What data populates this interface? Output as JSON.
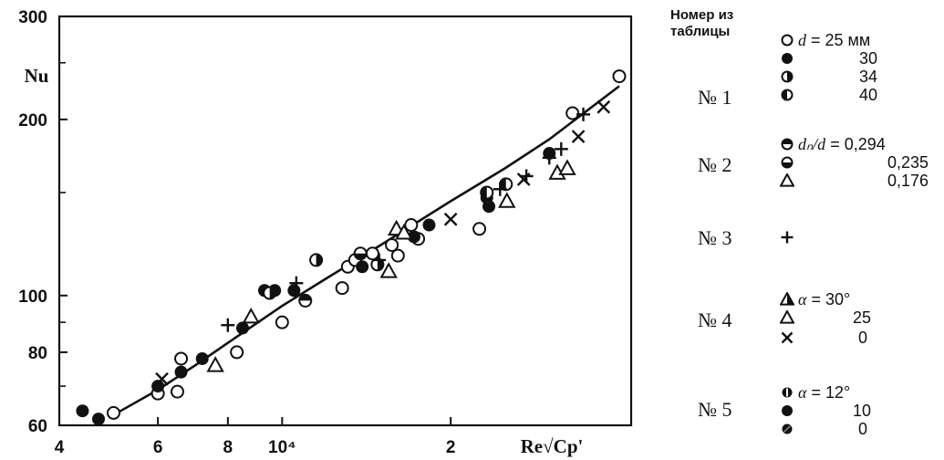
{
  "chart_data": {
    "type": "scatter",
    "title": "",
    "xlabel": "Re√Cp'",
    "ylabel": "Nu",
    "x_scale": "log",
    "y_scale": "log",
    "xlim": [
      4000,
      42000
    ],
    "ylim": [
      60,
      300
    ],
    "x_ticks": [
      {
        "value": 4000,
        "label": "4"
      },
      {
        "value": 6000,
        "label": "6"
      },
      {
        "value": 8000,
        "label": "8"
      },
      {
        "value": 10000,
        "label": "10⁴"
      },
      {
        "value": 20000,
        "label": "2"
      }
    ],
    "y_ticks": [
      {
        "value": 60,
        "label": "60"
      },
      {
        "value": 80,
        "label": "80"
      },
      {
        "value": 100,
        "label": "100"
      },
      {
        "value": 200,
        "label": "200"
      },
      {
        "value": 300,
        "label": "300"
      }
    ],
    "y_minor_ticks": [
      70,
      90,
      150,
      250
    ],
    "fit_curve": [
      [
        5000,
        62.5
      ],
      [
        6000,
        69
      ],
      [
        7000,
        76
      ],
      [
        8000,
        83
      ],
      [
        10000,
        96
      ],
      [
        12000,
        107
      ],
      [
        15000,
        122
      ],
      [
        20000,
        145
      ],
      [
        25000,
        165
      ],
      [
        30000,
        185
      ],
      [
        40000,
        228
      ]
    ],
    "series": [
      {
        "marker": "open-circle",
        "points": [
          [
            5000,
            63
          ],
          [
            6000,
            68
          ],
          [
            6500,
            68.5
          ],
          [
            6600,
            78
          ],
          [
            8300,
            80
          ],
          [
            10000,
            90
          ],
          [
            12800,
            103
          ],
          [
            13100,
            112
          ],
          [
            13500,
            115
          ],
          [
            14500,
            118
          ],
          [
            15700,
            122
          ],
          [
            16100,
            117
          ],
          [
            17000,
            132
          ],
          [
            17500,
            125
          ],
          [
            22500,
            130
          ],
          [
            33000,
            205
          ],
          [
            40000,
            237
          ]
        ]
      },
      {
        "marker": "filled-circle",
        "points": [
          [
            4400,
            63.5
          ],
          [
            4700,
            61.5
          ],
          [
            6000,
            70
          ],
          [
            6600,
            74
          ],
          [
            7200,
            78
          ],
          [
            8500,
            88
          ],
          [
            9300,
            102
          ],
          [
            9700,
            102
          ],
          [
            10500,
            102
          ],
          [
            13900,
            112
          ],
          [
            17200,
            126
          ],
          [
            18300,
            132
          ],
          [
            23200,
            147
          ],
          [
            23400,
            142
          ],
          [
            30000,
            175
          ]
        ]
      },
      {
        "marker": "right-half-circle",
        "points": [
          [
            9500,
            101
          ],
          [
            11500,
            115
          ],
          [
            14800,
            113
          ]
        ]
      },
      {
        "marker": "left-half-circle",
        "points": [
          [
            23200,
            150
          ],
          [
            25100,
            155
          ]
        ]
      },
      {
        "marker": "top-half-circle",
        "points": [
          [
            11000,
            98
          ]
        ]
      },
      {
        "marker": "bottom-half-circle",
        "points": [
          [
            13800,
            118
          ]
        ]
      },
      {
        "marker": "triangle",
        "points": [
          [
            7600,
            76
          ],
          [
            8800,
            92
          ],
          [
            15500,
            110
          ],
          [
            16000,
            130
          ],
          [
            16500,
            128
          ],
          [
            25200,
            145
          ],
          [
            31000,
            162
          ],
          [
            32300,
            165
          ]
        ]
      },
      {
        "marker": "plus",
        "points": [
          [
            8000,
            89
          ],
          [
            10600,
            105
          ],
          [
            14900,
            115
          ],
          [
            24500,
            152
          ],
          [
            27300,
            160
          ],
          [
            30000,
            172
          ],
          [
            31500,
            178
          ],
          [
            34500,
            204
          ]
        ]
      },
      {
        "marker": "cross",
        "points": [
          [
            6100,
            72
          ],
          [
            20000,
            135
          ],
          [
            27000,
            158
          ],
          [
            33800,
            187
          ],
          [
            37500,
            210
          ]
        ]
      }
    ]
  },
  "legend": {
    "header": "Номер из таблицы",
    "groups": [
      {
        "label": "№ 1",
        "rows": [
          {
            "symbol": "open-circle",
            "var": "d",
            "eq": " = ",
            "value": "25 мм"
          },
          {
            "symbol": "filled-circle",
            "value": "30"
          },
          {
            "symbol": "right-half-circle",
            "value": "34"
          },
          {
            "symbol": "left-half-circle",
            "value": "40"
          }
        ]
      },
      {
        "label": "№ 2",
        "rows": [
          {
            "symbol": "top-half-circle",
            "var": "dₙ/d",
            "eq": " = ",
            "value": "0,294"
          },
          {
            "symbol": "bottom-half-circle",
            "value": "0,235"
          },
          {
            "symbol": "triangle",
            "value": "0,176"
          }
        ]
      },
      {
        "label": "№ 3",
        "rows": [
          {
            "symbol": "plus",
            "value": ""
          }
        ]
      },
      {
        "label": "№ 4",
        "rows": [
          {
            "symbol": "half-triangle",
            "var": "α",
            "eq": " = ",
            "value": "30°"
          },
          {
            "symbol": "triangle-bold",
            "value": "25"
          },
          {
            "symbol": "cross",
            "value": "0"
          }
        ]
      },
      {
        "label": "№ 5",
        "rows": [
          {
            "symbol": "vertical-striped-circle",
            "var": "α",
            "eq": " = ",
            "value": "12°"
          },
          {
            "symbol": "filled-circle",
            "value": "10"
          },
          {
            "symbol": "dotted-circle",
            "value": "0"
          }
        ]
      }
    ]
  }
}
